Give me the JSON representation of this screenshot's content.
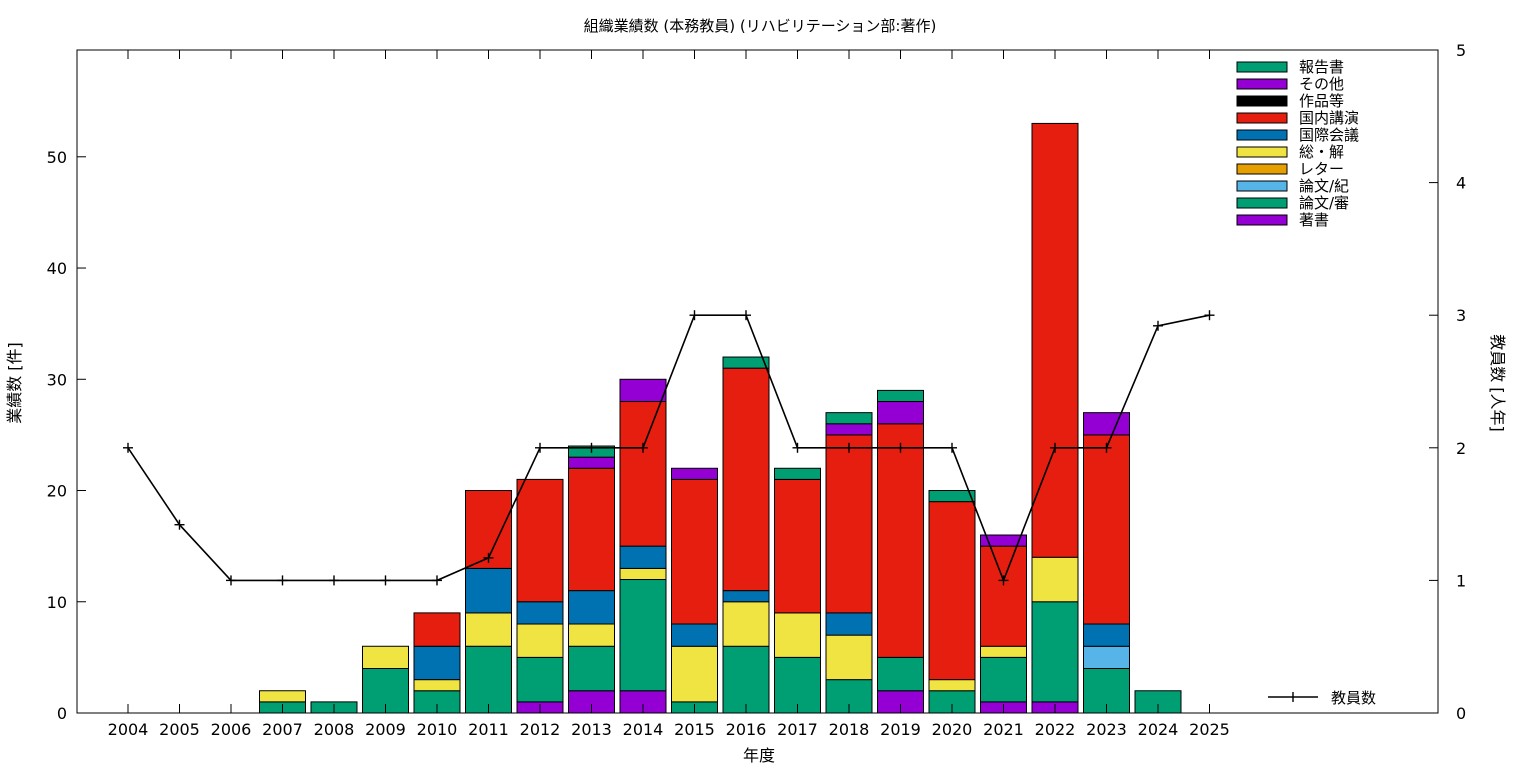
{
  "chart_data": {
    "type": "bar",
    "stacked": true,
    "title": "組織業績数 (本務教員) (リハビリテーション部:著作)",
    "xlabel": "年度",
    "ylabel": "業績数 [件]",
    "y2label": "教員数 [人年]",
    "categories": [
      "2004",
      "2005",
      "2006",
      "2007",
      "2008",
      "2009",
      "2010",
      "2011",
      "2012",
      "2013",
      "2014",
      "2015",
      "2016",
      "2017",
      "2018",
      "2019",
      "2020",
      "2021",
      "2022",
      "2023",
      "2024",
      "2025"
    ],
    "ylim": [
      0,
      59.6
    ],
    "yticks": [
      0,
      10,
      20,
      30,
      40,
      50
    ],
    "y2lim": [
      0,
      5
    ],
    "y2ticks": [
      0,
      1,
      2,
      3,
      4,
      5
    ],
    "grid": false,
    "legend_position": "top-right",
    "series": [
      {
        "name": "著書",
        "color": "#9400d3",
        "values": [
          0,
          0,
          0,
          0,
          0,
          0,
          0,
          0,
          1,
          2,
          2,
          0,
          0,
          0,
          0,
          2,
          0,
          1,
          1,
          0,
          0,
          0
        ]
      },
      {
        "name": "論文/審",
        "color": "#009e73",
        "values": [
          0,
          0,
          0,
          1,
          1,
          4,
          2,
          6,
          4,
          4,
          10,
          1,
          6,
          5,
          3,
          3,
          2,
          4,
          9,
          4,
          2,
          0
        ]
      },
      {
        "name": "論文/紀",
        "color": "#56b4e9",
        "values": [
          0,
          0,
          0,
          0,
          0,
          0,
          0,
          0,
          0,
          0,
          0,
          0,
          0,
          0,
          0,
          0,
          0,
          0,
          0,
          2,
          0,
          0
        ]
      },
      {
        "name": "レター",
        "color": "#e69f00",
        "values": [
          0,
          0,
          0,
          0,
          0,
          0,
          0,
          0,
          0,
          0,
          0,
          0,
          0,
          0,
          0,
          0,
          0,
          0,
          0,
          0,
          0,
          0
        ]
      },
      {
        "name": "総・解",
        "color": "#f0e442",
        "values": [
          0,
          0,
          0,
          1,
          0,
          2,
          1,
          3,
          3,
          2,
          1,
          5,
          4,
          4,
          4,
          0,
          1,
          1,
          4,
          0,
          0,
          0
        ]
      },
      {
        "name": "国際会議",
        "color": "#0072b2",
        "values": [
          0,
          0,
          0,
          0,
          0,
          0,
          3,
          4,
          2,
          3,
          2,
          2,
          1,
          0,
          2,
          0,
          0,
          0,
          0,
          2,
          0,
          0
        ]
      },
      {
        "name": "国内講演",
        "color": "#e51e10",
        "values": [
          0,
          0,
          0,
          0,
          0,
          0,
          3,
          7,
          11,
          11,
          13,
          13,
          20,
          12,
          16,
          21,
          16,
          9,
          39,
          17,
          0,
          0
        ]
      },
      {
        "name": "作品等",
        "color": "#000000",
        "values": [
          0,
          0,
          0,
          0,
          0,
          0,
          0,
          0,
          0,
          0,
          0,
          0,
          0,
          0,
          0,
          0,
          0,
          0,
          0,
          0,
          0,
          0
        ]
      },
      {
        "name": "その他",
        "color": "#9400d3",
        "values": [
          0,
          0,
          0,
          0,
          0,
          0,
          0,
          0,
          0,
          1,
          2,
          1,
          0,
          0,
          1,
          2,
          0,
          1,
          0,
          2,
          0,
          0
        ]
      },
      {
        "name": "報告書",
        "color": "#009e73",
        "values": [
          0,
          0,
          0,
          0,
          0,
          0,
          0,
          0,
          0,
          1,
          0,
          0,
          1,
          1,
          1,
          1,
          1,
          0,
          0,
          0,
          0,
          0
        ]
      }
    ],
    "line_series": {
      "name": "教員数",
      "axis": "y2",
      "color": "#000000",
      "values": [
        2.0,
        1.42,
        1.0,
        1.0,
        1.0,
        1.0,
        1.0,
        1.17,
        2.0,
        2.0,
        2.0,
        3.0,
        3.0,
        2.0,
        2.0,
        2.0,
        2.0,
        1.0,
        2.0,
        2.0,
        2.92,
        3.0
      ]
    }
  }
}
